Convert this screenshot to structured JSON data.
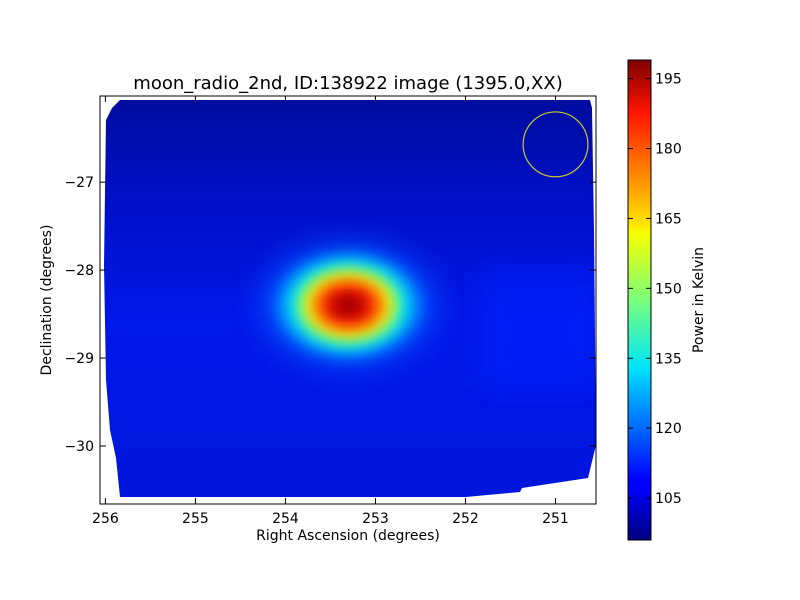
{
  "chart_data": {
    "type": "heatmap",
    "title": "moon_radio_2nd, ID:138922 image (1395.0,XX)",
    "xlabel": "Right Ascension (degrees)",
    "ylabel": "Declination (degrees)",
    "xlim": [
      256.06,
      250.55
    ],
    "ylim": [
      -30.66,
      -26.02
    ],
    "x_ticks": [
      256,
      255,
      254,
      253,
      252,
      251
    ],
    "y_ticks": [
      -27,
      -28,
      -29,
      -30
    ],
    "colorbar": {
      "label": "Power in Kelvin",
      "range": [
        96,
        199
      ],
      "ticks": [
        105,
        120,
        135,
        150,
        165,
        180,
        195
      ],
      "colormap": "jet"
    },
    "background_level": 103,
    "source": {
      "ra": 253.3,
      "dec": -28.4,
      "peak": 197
    },
    "beam_circle": {
      "ra": 251.0,
      "dec": -26.57,
      "radius_deg": 0.36,
      "color": "#c8c832"
    },
    "axis_color": "#000000"
  }
}
